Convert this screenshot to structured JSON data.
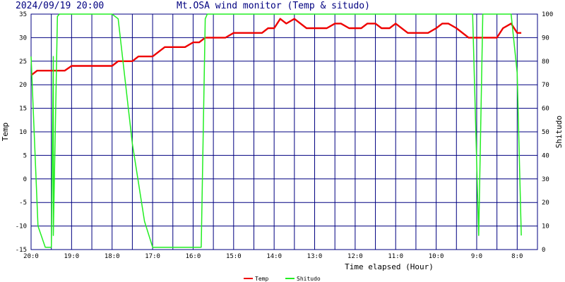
{
  "header": {
    "datetime": "2024/09/19 20:00",
    "title": "Mt.OSA wind monitor (Temp & situdo)"
  },
  "colors": {
    "temp": "#ee0000",
    "shitudo": "#22ee22",
    "grid": "#000080",
    "text": "#000000",
    "title": "#000080"
  },
  "chart_data": {
    "type": "line",
    "title": "Mt.OSA wind monitor (Temp & situdo)",
    "xlabel": "Time elapsed (Hour)",
    "ylabel_left": "Temp",
    "ylabel_right": "Shitudo",
    "x_unit": "hours elapsed",
    "xlim": [
      0,
      12.5
    ],
    "x_ticks": [
      {
        "x": 0,
        "label": "20:0"
      },
      {
        "x": 1,
        "label": "19:0"
      },
      {
        "x": 2,
        "label": "18:0"
      },
      {
        "x": 3,
        "label": "17:0"
      },
      {
        "x": 4,
        "label": "16:0"
      },
      {
        "x": 5,
        "label": "15:0"
      },
      {
        "x": 6,
        "label": "14:0"
      },
      {
        "x": 7,
        "label": "13:0"
      },
      {
        "x": 8,
        "label": "12:0"
      },
      {
        "x": 9,
        "label": "11:0"
      },
      {
        "x": 10,
        "label": "10:0"
      },
      {
        "x": 11,
        "label": "9:0"
      },
      {
        "x": 12,
        "label": "8:0"
      }
    ],
    "y_left": {
      "lim": [
        -15,
        35
      ],
      "ticks": [
        -15,
        -10,
        -5,
        0,
        5,
        10,
        15,
        20,
        25,
        30,
        35
      ]
    },
    "y_right": {
      "lim": [
        0,
        100
      ],
      "ticks": [
        0,
        10,
        20,
        30,
        40,
        50,
        60,
        70,
        80,
        90,
        100
      ]
    },
    "grid": true,
    "legend": "bottom-center",
    "series": [
      {
        "name": "Temp",
        "axis": "left",
        "points": [
          [
            0.0,
            22.0
          ],
          [
            0.15,
            23.0
          ],
          [
            0.5,
            23.0
          ],
          [
            0.83,
            23.0
          ],
          [
            1.0,
            24.0
          ],
          [
            1.5,
            24.0
          ],
          [
            2.0,
            24.0
          ],
          [
            2.15,
            25.0
          ],
          [
            2.5,
            25.0
          ],
          [
            2.65,
            26.0
          ],
          [
            3.0,
            26.0
          ],
          [
            3.3,
            28.0
          ],
          [
            3.8,
            28.0
          ],
          [
            4.0,
            29.0
          ],
          [
            4.15,
            29.0
          ],
          [
            4.3,
            30.0
          ],
          [
            4.8,
            30.0
          ],
          [
            5.0,
            31.0
          ],
          [
            5.5,
            31.0
          ],
          [
            5.7,
            31.0
          ],
          [
            5.85,
            32.0
          ],
          [
            6.0,
            32.0
          ],
          [
            6.15,
            34.0
          ],
          [
            6.3,
            33.0
          ],
          [
            6.5,
            34.0
          ],
          [
            6.8,
            32.0
          ],
          [
            7.0,
            32.0
          ],
          [
            7.3,
            32.0
          ],
          [
            7.5,
            33.0
          ],
          [
            7.65,
            33.0
          ],
          [
            7.85,
            32.0
          ],
          [
            8.0,
            32.0
          ],
          [
            8.15,
            32.0
          ],
          [
            8.3,
            33.0
          ],
          [
            8.5,
            33.0
          ],
          [
            8.65,
            32.0
          ],
          [
            8.85,
            32.0
          ],
          [
            9.0,
            33.0
          ],
          [
            9.3,
            31.0
          ],
          [
            9.5,
            31.0
          ],
          [
            9.8,
            31.0
          ],
          [
            10.0,
            32.0
          ],
          [
            10.15,
            33.0
          ],
          [
            10.3,
            33.0
          ],
          [
            10.5,
            32.0
          ],
          [
            10.8,
            30.0
          ],
          [
            11.0,
            30.0
          ],
          [
            11.5,
            30.0
          ],
          [
            11.65,
            32.0
          ],
          [
            11.85,
            33.0
          ],
          [
            12.0,
            31.0
          ],
          [
            12.1,
            31.0
          ]
        ]
      },
      {
        "name": "Shitudo",
        "axis": "right",
        "points": [
          [
            0.0,
            82.0
          ],
          [
            0.17,
            10.0
          ],
          [
            0.35,
            1.0
          ],
          [
            0.5,
            1.0
          ],
          [
            0.55,
            82.0
          ],
          [
            0.55,
            6.0
          ],
          [
            0.65,
            99.0
          ],
          [
            0.7,
            100.0
          ],
          [
            1.0,
            100.0
          ],
          [
            1.5,
            100.0
          ],
          [
            2.0,
            100.0
          ],
          [
            2.15,
            98.0
          ],
          [
            2.5,
            45.0
          ],
          [
            2.8,
            12.0
          ],
          [
            3.0,
            1.0
          ],
          [
            3.5,
            1.0
          ],
          [
            4.0,
            1.0
          ],
          [
            4.2,
            1.0
          ],
          [
            4.3,
            98.0
          ],
          [
            4.35,
            100.0
          ],
          [
            5.0,
            100.0
          ],
          [
            6.0,
            100.0
          ],
          [
            7.0,
            100.0
          ],
          [
            8.0,
            100.0
          ],
          [
            9.0,
            100.0
          ],
          [
            10.0,
            100.0
          ],
          [
            10.9,
            100.0
          ],
          [
            11.05,
            6.0
          ],
          [
            11.15,
            100.0
          ],
          [
            11.5,
            100.0
          ],
          [
            11.85,
            100.0
          ],
          [
            12.0,
            75.0
          ],
          [
            12.1,
            6.0
          ]
        ]
      }
    ]
  },
  "legend": {
    "items": [
      {
        "name": "Temp",
        "color": "#ee0000"
      },
      {
        "name": "Shitudo",
        "color": "#22ee22"
      }
    ]
  }
}
